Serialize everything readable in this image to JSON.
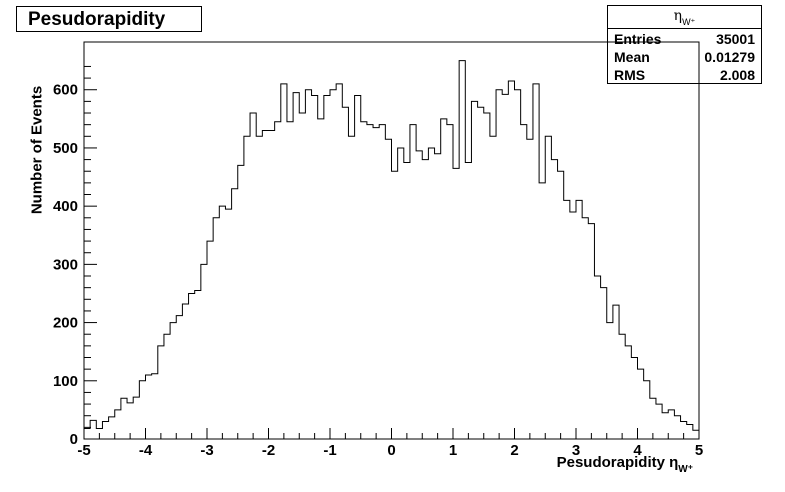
{
  "chart_data": {
    "type": "histogram",
    "title": "Pesudorapidity",
    "xlabel": "Pesudorapidity η",
    "xlabel_subscript": "W⁺",
    "ylabel": "Number of Events",
    "xlim": [
      -5,
      5
    ],
    "ylim": [
      0,
      682
    ],
    "x_ticks": [
      "-5",
      "-4",
      "-3",
      "-2",
      "-1",
      "0",
      "1",
      "2",
      "3",
      "4",
      "5"
    ],
    "y_ticks": [
      "0",
      "100",
      "200",
      "300",
      "400",
      "500",
      "600"
    ],
    "bin_edges_range": [
      -5,
      5
    ],
    "n_bins": 100,
    "values": [
      18,
      32,
      18,
      30,
      38,
      50,
      70,
      62,
      72,
      100,
      110,
      112,
      160,
      180,
      200,
      212,
      232,
      250,
      255,
      300,
      340,
      380,
      400,
      395,
      430,
      470,
      520,
      560,
      520,
      530,
      530,
      545,
      610,
      545,
      595,
      560,
      600,
      590,
      550,
      590,
      600,
      610,
      570,
      520,
      590,
      545,
      540,
      535,
      540,
      515,
      460,
      500,
      475,
      540,
      495,
      480,
      500,
      490,
      550,
      540,
      465,
      650,
      475,
      580,
      570,
      560,
      520,
      600,
      592,
      615,
      600,
      540,
      515,
      610,
      440,
      520,
      480,
      460,
      410,
      390,
      410,
      380,
      370,
      280,
      260,
      200,
      230,
      180,
      160,
      140,
      120,
      100,
      70,
      60,
      45,
      50,
      40,
      30,
      25,
      15
    ],
    "grid": false,
    "stats": {
      "header": "η",
      "header_subscript": "W⁺",
      "rows": [
        {
          "key": "Entries",
          "value": "35001"
        },
        {
          "key": "Mean",
          "value": "0.01279"
        },
        {
          "key": "RMS",
          "value": "2.008"
        }
      ]
    }
  }
}
